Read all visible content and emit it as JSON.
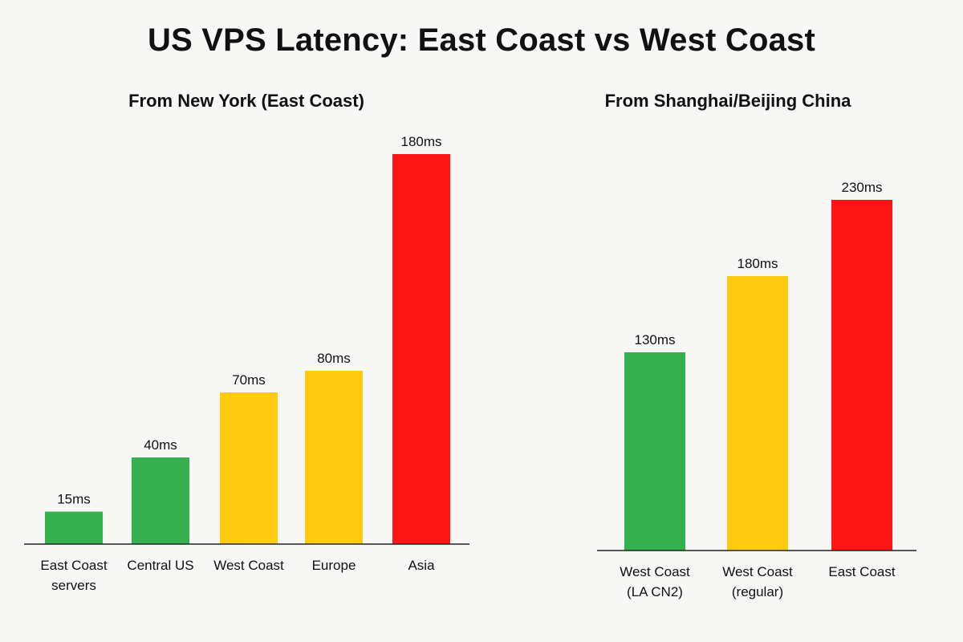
{
  "page": {
    "title": "US VPS Latency: East Coast vs West Coast"
  },
  "colors": {
    "green": "#34b14e",
    "yellow": "#fecb10",
    "red": "#fd1515",
    "axis": "#222222"
  },
  "chart_data": [
    {
      "type": "bar",
      "title": "From New York (East Coast)",
      "xlabel": "",
      "ylabel": "",
      "unit": "ms",
      "ylim": [
        0,
        190
      ],
      "grid": false,
      "categories": [
        [
          "East Coast",
          "servers"
        ],
        [
          "Central US"
        ],
        [
          "West Coast"
        ],
        [
          "Europe"
        ],
        [
          "Asia"
        ]
      ],
      "values": [
        15,
        40,
        70,
        80,
        180
      ],
      "data_labels": [
        "15ms",
        "40ms",
        "70ms",
        "80ms",
        "180ms"
      ],
      "bar_colors": [
        "green",
        "green",
        "yellow",
        "yellow",
        "red"
      ]
    },
    {
      "type": "bar",
      "title": "From Shanghai/Beijing China",
      "xlabel": "",
      "ylabel": "",
      "unit": "ms",
      "ylim": [
        0,
        240
      ],
      "grid": false,
      "categories": [
        [
          "West Coast",
          "(LA CN2)"
        ],
        [
          "West Coast",
          "(regular)"
        ],
        [
          "East Coast"
        ]
      ],
      "values": [
        130,
        180,
        230
      ],
      "data_labels": [
        "130ms",
        "180ms",
        "230ms"
      ],
      "bar_colors": [
        "green",
        "yellow",
        "red"
      ]
    }
  ]
}
